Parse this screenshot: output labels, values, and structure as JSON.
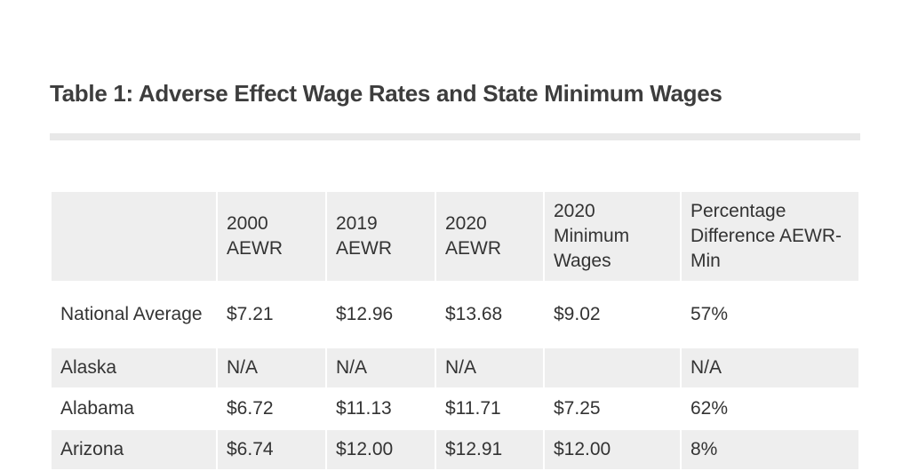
{
  "title": "Table 1: Adverse Effect Wage Rates and State Minimum Wages",
  "table": {
    "headers": [
      "",
      "2000 AEWR",
      "2019 AEWR",
      "2020 AEWR",
      "2020 Minimum Wages",
      "Percentage Difference AEWR-Min"
    ],
    "rows": [
      [
        "National Average",
        "$7.21",
        "$12.96",
        "$13.68",
        "$9.02",
        "57%"
      ],
      [
        "Alaska",
        "N/A",
        "N/A",
        "N/A",
        "",
        "N/A"
      ],
      [
        "Alabama",
        "$6.72",
        "$11.13",
        "$11.71",
        "$7.25",
        "62%"
      ],
      [
        "Arizona",
        "$6.74",
        "$12.00",
        "$12.91",
        "$12.00",
        "8%"
      ]
    ]
  }
}
